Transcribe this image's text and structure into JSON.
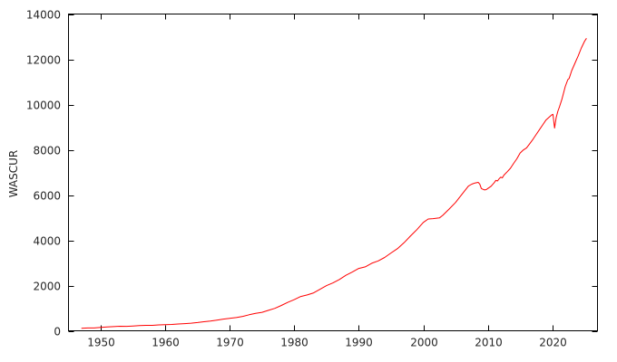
{
  "page": {
    "background": "#ffffff"
  },
  "chart_data": {
    "type": "line",
    "title": "",
    "xlabel": "",
    "ylabel": "WASCUR",
    "xlim": [
      1945,
      2027
    ],
    "ylim": [
      0,
      14000
    ],
    "x_ticks": [
      1950,
      1960,
      1970,
      1980,
      1990,
      2000,
      2010,
      2020
    ],
    "y_ticks": [
      0,
      2000,
      4000,
      6000,
      8000,
      10000,
      12000,
      14000
    ],
    "grid": false,
    "legend_position": "none",
    "axis_color": "#000000",
    "tick_label_color": "#262626",
    "series": [
      {
        "name": "WASCUR",
        "color": "#ff0000",
        "points": [
          [
            1947,
            111
          ],
          [
            1948,
            123
          ],
          [
            1949,
            122
          ],
          [
            1950,
            147
          ],
          [
            1951,
            171
          ],
          [
            1952,
            185
          ],
          [
            1953,
            199
          ],
          [
            1954,
            197
          ],
          [
            1955,
            212
          ],
          [
            1956,
            228
          ],
          [
            1957,
            239
          ],
          [
            1958,
            240
          ],
          [
            1959,
            259
          ],
          [
            1960,
            272
          ],
          [
            1961,
            281
          ],
          [
            1962,
            299
          ],
          [
            1963,
            314
          ],
          [
            1964,
            337
          ],
          [
            1965,
            363
          ],
          [
            1966,
            400
          ],
          [
            1967,
            429
          ],
          [
            1968,
            472
          ],
          [
            1969,
            518
          ],
          [
            1970,
            552
          ],
          [
            1971,
            584
          ],
          [
            1972,
            638
          ],
          [
            1973,
            708
          ],
          [
            1974,
            772
          ],
          [
            1975,
            815
          ],
          [
            1976,
            902
          ],
          [
            1977,
            992
          ],
          [
            1978,
            1121
          ],
          [
            1979,
            1256
          ],
          [
            1980,
            1378
          ],
          [
            1981,
            1518
          ],
          [
            1982,
            1586
          ],
          [
            1983,
            1677
          ],
          [
            1984,
            1837
          ],
          [
            1985,
            1995
          ],
          [
            1986,
            2115
          ],
          [
            1987,
            2270
          ],
          [
            1988,
            2452
          ],
          [
            1989,
            2596
          ],
          [
            1990,
            2754
          ],
          [
            1991,
            2825
          ],
          [
            1992,
            2983
          ],
          [
            1993,
            3089
          ],
          [
            1994,
            3241
          ],
          [
            1995,
            3441
          ],
          [
            1996,
            3631
          ],
          [
            1997,
            3889
          ],
          [
            1998,
            4186
          ],
          [
            1999,
            4467
          ],
          [
            2000,
            4790
          ],
          [
            2000.75,
            4940
          ],
          [
            2001.5,
            4955
          ],
          [
            2002.5,
            4990
          ],
          [
            2003,
            5100
          ],
          [
            2004,
            5380
          ],
          [
            2005,
            5671
          ],
          [
            2006,
            6035
          ],
          [
            2007,
            6396
          ],
          [
            2007.5,
            6480
          ],
          [
            2008,
            6534
          ],
          [
            2008.5,
            6559
          ],
          [
            2008.75,
            6490
          ],
          [
            2009,
            6290
          ],
          [
            2009.25,
            6252
          ],
          [
            2009.5,
            6223
          ],
          [
            2009.75,
            6240
          ],
          [
            2010,
            6288
          ],
          [
            2010.5,
            6390
          ],
          [
            2011,
            6550
          ],
          [
            2011.25,
            6650
          ],
          [
            2011.5,
            6620
          ],
          [
            2011.75,
            6720
          ],
          [
            2012,
            6786
          ],
          [
            2012.25,
            6760
          ],
          [
            2012.5,
            6880
          ],
          [
            2013,
            7030
          ],
          [
            2013.5,
            7180
          ],
          [
            2014,
            7400
          ],
          [
            2014.5,
            7600
          ],
          [
            2015,
            7855
          ],
          [
            2015.5,
            7990
          ],
          [
            2016,
            8085
          ],
          [
            2016.5,
            8270
          ],
          [
            2017,
            8462
          ],
          [
            2017.5,
            8680
          ],
          [
            2018,
            8889
          ],
          [
            2018.5,
            9100
          ],
          [
            2019,
            9309
          ],
          [
            2019.5,
            9440
          ],
          [
            2019.9,
            9540
          ],
          [
            2020.1,
            9570
          ],
          [
            2020.35,
            8960
          ],
          [
            2020.6,
            9430
          ],
          [
            2020.85,
            9700
          ],
          [
            2021.1,
            9900
          ],
          [
            2021.5,
            10250
          ],
          [
            2022,
            10800
          ],
          [
            2022.4,
            11100
          ],
          [
            2022.6,
            11150
          ],
          [
            2023,
            11500
          ],
          [
            2023.5,
            11820
          ],
          [
            2024,
            12150
          ],
          [
            2024.5,
            12500
          ],
          [
            2025,
            12800
          ],
          [
            2025.3,
            12930
          ]
        ]
      }
    ]
  }
}
